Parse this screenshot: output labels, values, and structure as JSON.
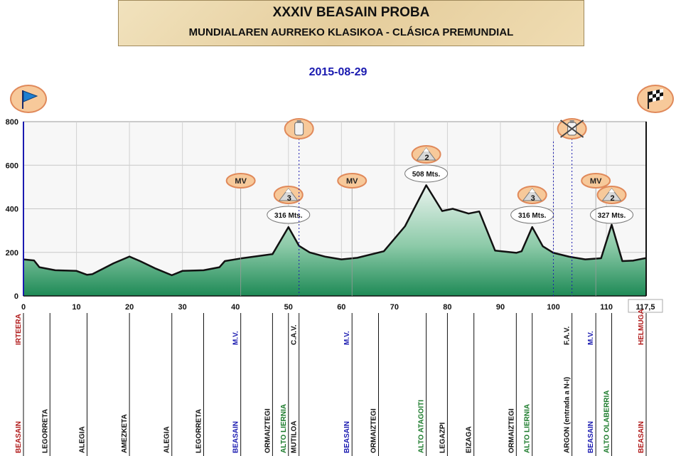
{
  "header": {
    "title": "XXXIV BEASAIN PROBA",
    "subtitle": "MUNDIALAREN AURREKO KLASIKOA - CLÁSICA PREMUNDIAL",
    "date": "2015-08-29"
  },
  "icons": {
    "start": "start-flag-icon",
    "finish": "finish-flag-icon"
  },
  "colors": {
    "fill_top": "#e9f3ee",
    "fill_bottom": "#1e8a56",
    "line": "#111111",
    "climb_label": "#1a7a2a",
    "mv_label": "#1a1ab0",
    "town_label": "#111111",
    "endpoint_label": "#b01a1a"
  },
  "chart_data": {
    "type": "area",
    "xlabel": "",
    "ylabel": "",
    "xlim": [
      0,
      117.5
    ],
    "ylim": [
      0,
      800
    ],
    "x_ticks": [
      "0",
      "10",
      "20",
      "30",
      "40",
      "50",
      "60",
      "70",
      "80",
      "90",
      "100",
      "110",
      "117,5"
    ],
    "y_ticks": [
      "0",
      "200",
      "400",
      "600",
      "800"
    ],
    "grid": true,
    "profile": [
      [
        0,
        168
      ],
      [
        2,
        163
      ],
      [
        3,
        132
      ],
      [
        6,
        118
      ],
      [
        10,
        115
      ],
      [
        12,
        97
      ],
      [
        13,
        100
      ],
      [
        17,
        150
      ],
      [
        20,
        181
      ],
      [
        22,
        160
      ],
      [
        25,
        125
      ],
      [
        28,
        95
      ],
      [
        30,
        115
      ],
      [
        34,
        118
      ],
      [
        37,
        132
      ],
      [
        38,
        160
      ],
      [
        41,
        172
      ],
      [
        47,
        192
      ],
      [
        50,
        316
      ],
      [
        52,
        230
      ],
      [
        54,
        200
      ],
      [
        57,
        180
      ],
      [
        60,
        168
      ],
      [
        63,
        175
      ],
      [
        68,
        205
      ],
      [
        72,
        320
      ],
      [
        76,
        508
      ],
      [
        79,
        390
      ],
      [
        81,
        400
      ],
      [
        84,
        378
      ],
      [
        86,
        388
      ],
      [
        89,
        208
      ],
      [
        93,
        198
      ],
      [
        94,
        205
      ],
      [
        96,
        316
      ],
      [
        98,
        228
      ],
      [
        100,
        198
      ],
      [
        103,
        180
      ],
      [
        106,
        168
      ],
      [
        109,
        173
      ],
      [
        111,
        327
      ],
      [
        113,
        160
      ],
      [
        115,
        162
      ],
      [
        117.5,
        174
      ]
    ],
    "climbs": [
      {
        "km": 50,
        "category": "3",
        "altitude": "316 Mts."
      },
      {
        "km": 76,
        "category": "2",
        "altitude": "508 Mts."
      },
      {
        "km": 96,
        "category": "3",
        "altitude": "316 Mts."
      },
      {
        "km": 111,
        "category": "2",
        "altitude": "327 Mts."
      }
    ],
    "mv_markers": [
      {
        "km": 41,
        "label": "MV"
      },
      {
        "km": 62,
        "label": "MV"
      },
      {
        "km": 108,
        "label": "MV"
      }
    ],
    "feed_markers": [
      {
        "km": 52,
        "icon": "bottle-icon"
      },
      {
        "km": 103.5,
        "icon": "crossed-bottle-icon"
      }
    ],
    "route_labels": [
      {
        "km": 0,
        "top": "IRTEERA",
        "top_color": "endpoint",
        "bottom": "BEASAIN",
        "bottom_color": "endpoint"
      },
      {
        "km": 5,
        "top": "",
        "top_color": "town",
        "bottom": "LEGORRETA",
        "bottom_color": "town"
      },
      {
        "km": 12,
        "top": "",
        "top_color": "town",
        "bottom": "ALEGIA",
        "bottom_color": "town"
      },
      {
        "km": 20,
        "top": "",
        "top_color": "town",
        "bottom": "AMEZKETA",
        "bottom_color": "town"
      },
      {
        "km": 28,
        "top": "",
        "top_color": "town",
        "bottom": "ALEGIA",
        "bottom_color": "town"
      },
      {
        "km": 34,
        "top": "",
        "top_color": "town",
        "bottom": "LEGORRETA",
        "bottom_color": "town"
      },
      {
        "km": 41,
        "top": "M.V.",
        "top_color": "mv",
        "bottom": "BEASAIN",
        "bottom_color": "mv"
      },
      {
        "km": 47,
        "top": "",
        "top_color": "town",
        "bottom": "ORMAIZTEGI",
        "bottom_color": "town"
      },
      {
        "km": 50,
        "top": "",
        "top_color": "town",
        "bottom": "ALTO LIERNIA",
        "bottom_color": "climb"
      },
      {
        "km": 52,
        "top": "C.A.V.",
        "top_color": "town",
        "bottom": "MUTILOA",
        "bottom_color": "town"
      },
      {
        "km": 62,
        "top": "M.V.",
        "top_color": "mv",
        "bottom": "BEASAIN",
        "bottom_color": "mv"
      },
      {
        "km": 67,
        "top": "",
        "top_color": "town",
        "bottom": "ORMAIZTEGI",
        "bottom_color": "town"
      },
      {
        "km": 76,
        "top": "",
        "top_color": "town",
        "bottom": "ALTO ATAGOITI",
        "bottom_color": "climb"
      },
      {
        "km": 80,
        "top": "",
        "top_color": "town",
        "bottom": "LEGAZPI",
        "bottom_color": "town"
      },
      {
        "km": 85,
        "top": "",
        "top_color": "town",
        "bottom": "EIZAGA",
        "bottom_color": "town"
      },
      {
        "km": 93,
        "top": "",
        "top_color": "town",
        "bottom": "ORMAIZTEGI",
        "bottom_color": "town"
      },
      {
        "km": 96,
        "top": "",
        "top_color": "town",
        "bottom": "ALTO LIERNIA",
        "bottom_color": "climb"
      },
      {
        "km": 103.5,
        "top": "F.A.V.",
        "top_color": "town",
        "bottom": "ARGON (entrada a N-I)",
        "bottom_color": "town"
      },
      {
        "km": 108,
        "top": "M.V.",
        "top_color": "mv",
        "bottom": "BEASAIN",
        "bottom_color": "mv"
      },
      {
        "km": 111,
        "top": "",
        "top_color": "town",
        "bottom": "ALTO OLABERRIA",
        "bottom_color": "climb"
      },
      {
        "km": 117.5,
        "top": "HELMUGA",
        "top_color": "endpoint",
        "bottom": "BEASAIN",
        "bottom_color": "endpoint"
      }
    ]
  }
}
